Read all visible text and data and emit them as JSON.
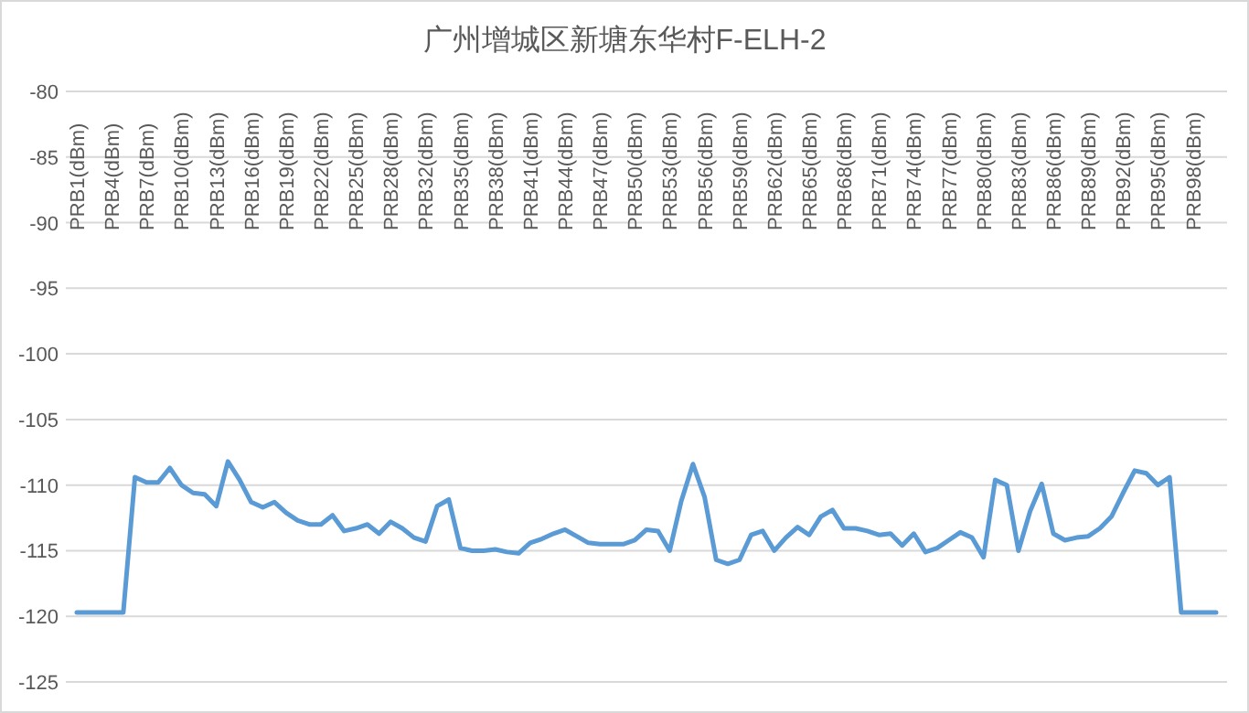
{
  "chart_data": {
    "type": "line",
    "title": "广州增城区新塘东华村F-ELH-2",
    "categories": [
      "PRB1(dBm)",
      null,
      null,
      "PRB4(dBm)",
      null,
      null,
      "PRB7(dBm)",
      null,
      null,
      "PRB10(dBm)",
      null,
      null,
      "PRB13(dBm)",
      null,
      null,
      "PRB16(dBm)",
      null,
      null,
      "PRB19(dBm)",
      null,
      null,
      "PRB22(dBm)",
      null,
      null,
      "PRB25(dBm)",
      null,
      null,
      "PRB28(dBm)",
      null,
      null,
      "PRB32(dBm)",
      null,
      null,
      "PRB35(dBm)",
      null,
      null,
      "PRB38(dBm)",
      null,
      null,
      "PRB41(dBm)",
      null,
      null,
      "PRB44(dBm)",
      null,
      null,
      "PRB47(dBm)",
      null,
      null,
      "PRB50(dBm)",
      null,
      null,
      "PRB53(dBm)",
      null,
      null,
      "PRB56(dBm)",
      null,
      null,
      "PRB59(dBm)",
      null,
      null,
      "PRB62(dBm)",
      null,
      null,
      "PRB65(dBm)",
      null,
      null,
      "PRB68(dBm)",
      null,
      null,
      "PRB71(dBm)",
      null,
      null,
      "PRB74(dBm)",
      null,
      null,
      "PRB77(dBm)",
      null,
      null,
      "PRB80(dBm)",
      null,
      null,
      "PRB83(dBm)",
      null,
      null,
      "PRB86(dBm)",
      null,
      null,
      "PRB89(dBm)",
      null,
      null,
      "PRB92(dBm)",
      null,
      null,
      "PRB95(dBm)",
      null,
      null,
      "PRB98(dBm)",
      null,
      null
    ],
    "series": [
      {
        "color": "#5b9bd5",
        "values": [
          -119.7,
          -119.7,
          -119.7,
          -119.7,
          -119.7,
          -109.4,
          -109.8,
          -109.8,
          -108.7,
          -110,
          -110.6,
          -110.7,
          -111.6,
          -108.2,
          -109.6,
          -111.3,
          -111.7,
          -111.3,
          -112.1,
          -112.7,
          -113,
          -113,
          -112.3,
          -113.5,
          -113.3,
          -113,
          -113.7,
          -112.8,
          -113.3,
          -114,
          -114.3,
          -111.6,
          -111.1,
          -114.8,
          -115,
          -115,
          -114.9,
          -115.1,
          -115.2,
          -114.4,
          -114.1,
          -113.7,
          -113.4,
          -113.9,
          -114.4,
          -114.5,
          -114.5,
          -114.5,
          -114.2,
          -113.4,
          -113.5,
          -115,
          -111.2,
          -108.4,
          -110.9,
          -115.7,
          -116,
          -115.7,
          -113.8,
          -113.5,
          -115,
          -114,
          -113.2,
          -113.8,
          -112.4,
          -111.9,
          -113.3,
          -113.3,
          -113.5,
          -113.8,
          -113.7,
          -114.6,
          -113.7,
          -115.1,
          -114.8,
          -114.2,
          -113.6,
          -114,
          -115.5,
          -109.6,
          -110,
          -115,
          -112,
          -109.9,
          -113.7,
          -114.2,
          -114,
          -113.9,
          -113.3,
          -112.4,
          -110.6,
          -108.9,
          -109.1,
          -110,
          -109.4,
          -119.7,
          -119.7,
          -119.7,
          -119.7
        ]
      }
    ],
    "ylim": [
      -125,
      -80
    ],
    "yticks": [
      -125,
      -120,
      -115,
      -110,
      -105,
      -100,
      -95,
      -90,
      -85,
      -80
    ],
    "grid": "y"
  }
}
